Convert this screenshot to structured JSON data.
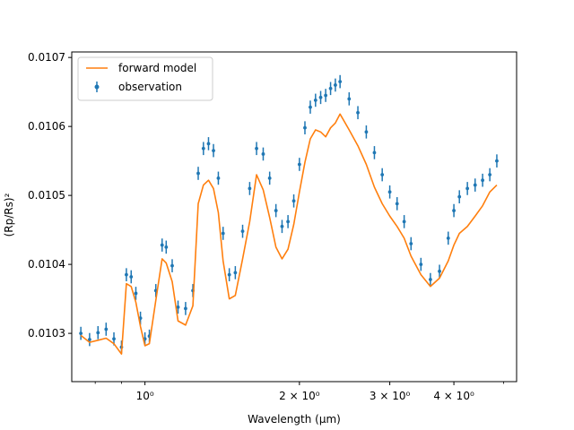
{
  "chart_data": {
    "type": "line",
    "xlabel": "Wavelength (μm)",
    "ylabel": "(Rp/Rs)²",
    "xscale": "log",
    "xlim": [
      0.72,
      5.3
    ],
    "ylim": [
      0.01023,
      0.010708
    ],
    "x_major_ticks": [
      {
        "value": 1,
        "label": "10⁰"
      },
      {
        "value": 2,
        "label": "2 × 10⁰"
      },
      {
        "value": 3,
        "label": "3 × 10⁰"
      },
      {
        "value": 4,
        "label": "4 × 10⁰"
      }
    ],
    "x_minor_ticks": [
      0.8,
      0.9,
      5
    ],
    "y_ticks": [
      {
        "value": 0.0103,
        "label": "0.0103"
      },
      {
        "value": 0.0104,
        "label": "0.0104"
      },
      {
        "value": 0.0105,
        "label": "0.0105"
      },
      {
        "value": 0.0106,
        "label": "0.0106"
      },
      {
        "value": 0.0107,
        "label": "0.0107"
      }
    ],
    "legend": {
      "placement": "upper left"
    },
    "series": [
      {
        "name": "forward model",
        "kind": "line",
        "color": "#ff7f0e",
        "x": [
          0.75,
          0.78,
          0.81,
          0.84,
          0.87,
          0.9,
          0.92,
          0.94,
          0.96,
          0.98,
          1.0,
          1.02,
          1.05,
          1.08,
          1.1,
          1.13,
          1.16,
          1.2,
          1.24,
          1.27,
          1.3,
          1.33,
          1.36,
          1.39,
          1.42,
          1.46,
          1.5,
          1.55,
          1.6,
          1.65,
          1.7,
          1.75,
          1.8,
          1.85,
          1.9,
          1.95,
          2.0,
          2.05,
          2.1,
          2.15,
          2.2,
          2.25,
          2.3,
          2.35,
          2.4,
          2.5,
          2.6,
          2.7,
          2.8,
          2.9,
          3.0,
          3.1,
          3.2,
          3.3,
          3.45,
          3.6,
          3.75,
          3.9,
          4.0,
          4.1,
          4.25,
          4.4,
          4.55,
          4.7,
          4.85
        ],
        "y": [
          0.010297,
          0.010287,
          0.01029,
          0.010293,
          0.010285,
          0.01027,
          0.010372,
          0.010368,
          0.010345,
          0.01031,
          0.010282,
          0.010285,
          0.010348,
          0.010408,
          0.010402,
          0.010375,
          0.010318,
          0.010312,
          0.01034,
          0.010488,
          0.010515,
          0.010522,
          0.01051,
          0.010475,
          0.010405,
          0.01035,
          0.010355,
          0.010408,
          0.010462,
          0.01053,
          0.010508,
          0.010468,
          0.010425,
          0.010408,
          0.010422,
          0.010458,
          0.010505,
          0.010548,
          0.010582,
          0.010595,
          0.010592,
          0.010585,
          0.010598,
          0.010605,
          0.010618,
          0.010595,
          0.010572,
          0.010545,
          0.010512,
          0.010488,
          0.01047,
          0.010455,
          0.010438,
          0.010412,
          0.010385,
          0.010368,
          0.01038,
          0.010405,
          0.010428,
          0.010445,
          0.010455,
          0.01047,
          0.010485,
          0.010505,
          0.010515
        ]
      },
      {
        "name": "observation",
        "kind": "errorbar",
        "color": "#1f77b4",
        "yerr": 9.5e-06,
        "x": [
          0.75,
          0.78,
          0.81,
          0.84,
          0.87,
          0.9,
          0.92,
          0.94,
          0.96,
          0.98,
          1.0,
          1.02,
          1.05,
          1.08,
          1.1,
          1.13,
          1.16,
          1.2,
          1.24,
          1.27,
          1.3,
          1.33,
          1.36,
          1.39,
          1.42,
          1.46,
          1.5,
          1.55,
          1.6,
          1.65,
          1.7,
          1.75,
          1.8,
          1.85,
          1.9,
          1.95,
          2.0,
          2.05,
          2.1,
          2.15,
          2.2,
          2.25,
          2.3,
          2.35,
          2.4,
          2.5,
          2.6,
          2.7,
          2.8,
          2.9,
          3.0,
          3.1,
          3.2,
          3.3,
          3.45,
          3.6,
          3.75,
          3.9,
          4.0,
          4.1,
          4.25,
          4.4,
          4.55,
          4.7,
          4.85
        ],
        "y": [
          0.0103,
          0.010291,
          0.010301,
          0.010306,
          0.010292,
          0.01028,
          0.010385,
          0.010382,
          0.010358,
          0.010322,
          0.010292,
          0.010296,
          0.010362,
          0.010428,
          0.010425,
          0.010398,
          0.010338,
          0.010336,
          0.010362,
          0.010532,
          0.010568,
          0.010575,
          0.010565,
          0.010525,
          0.010445,
          0.010385,
          0.010388,
          0.010448,
          0.01051,
          0.010568,
          0.01056,
          0.010525,
          0.010478,
          0.010455,
          0.010462,
          0.010492,
          0.010545,
          0.010598,
          0.010628,
          0.010638,
          0.010642,
          0.010645,
          0.010655,
          0.01066,
          0.010665,
          0.01064,
          0.01062,
          0.010592,
          0.010562,
          0.01053,
          0.010505,
          0.010488,
          0.010462,
          0.01043,
          0.0104,
          0.010378,
          0.01039,
          0.010438,
          0.010478,
          0.010498,
          0.01051,
          0.010515,
          0.010522,
          0.01053,
          0.01055
        ]
      }
    ]
  }
}
